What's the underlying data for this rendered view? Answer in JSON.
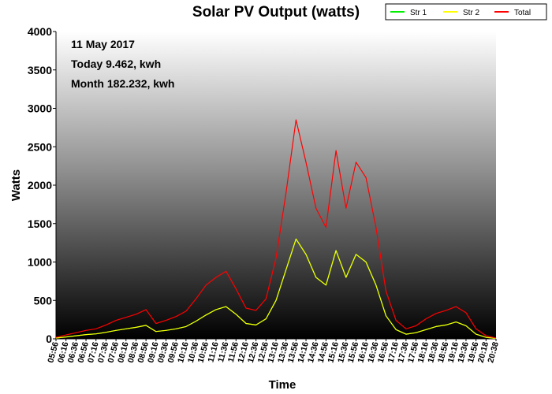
{
  "chart_data": {
    "type": "line",
    "title": "Solar PV Output (watts)",
    "xlabel": "Time",
    "ylabel": "Watts",
    "ylim": [
      0,
      4000
    ],
    "yticks": [
      "0",
      "500",
      "1000",
      "1500",
      "2000",
      "2500",
      "3000",
      "3500",
      "4000"
    ],
    "grid": false,
    "legend_position": "top-right",
    "annotations": [
      "11 May 2017",
      "Today 9.462, kwh",
      "Month 182.232, kwh"
    ],
    "categories": [
      "05:56",
      "06:16",
      "06:36",
      "06:56",
      "07:16",
      "07:36",
      "07:56",
      "08:16",
      "08:36",
      "08:56",
      "09:16",
      "09:36",
      "09:56",
      "10:16",
      "10:36",
      "10:56",
      "11:16",
      "11:36",
      "11:56",
      "12:16",
      "12:36",
      "12:56",
      "13:16",
      "13:36",
      "13:56",
      "14:16",
      "14:36",
      "14:56",
      "15:16",
      "15:36",
      "15:56",
      "16:16",
      "16:36",
      "16:56",
      "17:16",
      "17:36",
      "17:56",
      "18:16",
      "18:36",
      "18:56",
      "19:16",
      "19:36",
      "19:56",
      "20:18",
      "20:38"
    ],
    "series": [
      {
        "name": "Str 1",
        "color": "#00ee00",
        "values": [
          10,
          25,
          40,
          55,
          65,
          85,
          110,
          130,
          150,
          175,
          95,
          110,
          130,
          160,
          230,
          310,
          380,
          420,
          320,
          200,
          180,
          260,
          500,
          900,
          1300,
          1100,
          800,
          700,
          1150,
          800,
          1100,
          1000,
          700,
          300,
          120,
          60,
          80,
          120,
          160,
          180,
          220,
          170,
          60,
          20,
          5
        ]
      },
      {
        "name": "Str 2",
        "color": "#ffff00",
        "values": [
          10,
          25,
          40,
          55,
          65,
          85,
          110,
          130,
          150,
          175,
          95,
          110,
          130,
          160,
          230,
          310,
          380,
          420,
          320,
          200,
          180,
          260,
          500,
          900,
          1300,
          1100,
          800,
          700,
          1150,
          800,
          1100,
          1000,
          700,
          300,
          120,
          60,
          80,
          120,
          160,
          180,
          220,
          170,
          60,
          20,
          5
        ]
      },
      {
        "name": "Total",
        "color": "#ff0000",
        "values": [
          20,
          50,
          80,
          110,
          130,
          180,
          240,
          280,
          320,
          380,
          200,
          240,
          290,
          360,
          520,
          700,
          800,
          880,
          650,
          400,
          370,
          520,
          1050,
          1900,
          2850,
          2300,
          1700,
          1450,
          2450,
          1700,
          2300,
          2100,
          1450,
          620,
          240,
          130,
          170,
          260,
          330,
          370,
          420,
          340,
          130,
          40,
          10
        ]
      }
    ]
  }
}
